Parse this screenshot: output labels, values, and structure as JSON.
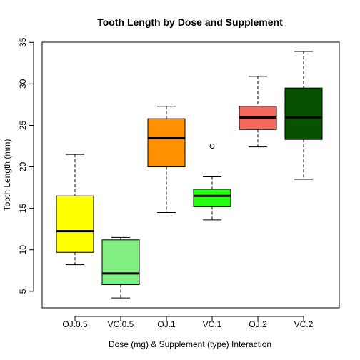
{
  "chart_data": {
    "type": "boxplot",
    "title": "Tooth Length by Dose and Supplement",
    "xlabel": "Dose (mg) & Supplement (type) Interaction",
    "ylabel": "Tooth Length (mm)",
    "ylim": [
      3,
      35
    ],
    "yticks": [
      5,
      10,
      15,
      20,
      25,
      30,
      35
    ],
    "categories": [
      "OJ.0.5",
      "VC.0.5",
      "OJ.1",
      "VC.1",
      "OJ.2",
      "VC.2"
    ],
    "boxes": [
      {
        "category": "OJ.0.5",
        "whisker_low": 8.2,
        "q1": 9.7,
        "median": 12.25,
        "q3": 16.5,
        "whisker_high": 21.5,
        "outliers": [],
        "color": "#FFFF00"
      },
      {
        "category": "VC.0.5",
        "whisker_low": 4.2,
        "q1": 5.8,
        "median": 7.15,
        "q3": 11.2,
        "whisker_high": 11.5,
        "outliers": [],
        "color": "#80EE80"
      },
      {
        "category": "OJ.1",
        "whisker_low": 14.5,
        "q1": 20.0,
        "median": 23.45,
        "q3": 25.8,
        "whisker_high": 27.3,
        "outliers": [],
        "color": "#FF9000"
      },
      {
        "category": "VC.1",
        "whisker_low": 13.6,
        "q1": 15.2,
        "median": 16.5,
        "q3": 17.3,
        "whisker_high": 18.8,
        "outliers": [
          22.5
        ],
        "color": "#22FF11"
      },
      {
        "category": "OJ.2",
        "whisker_low": 22.4,
        "q1": 24.5,
        "median": 25.95,
        "q3": 27.3,
        "whisker_high": 30.9,
        "outliers": [],
        "color": "#F46A5F"
      },
      {
        "category": "VC.2",
        "whisker_low": 18.5,
        "q1": 23.3,
        "median": 25.95,
        "q3": 29.5,
        "whisker_high": 33.9,
        "outliers": [],
        "color": "#075200"
      }
    ],
    "grid": false,
    "legend": "none"
  }
}
